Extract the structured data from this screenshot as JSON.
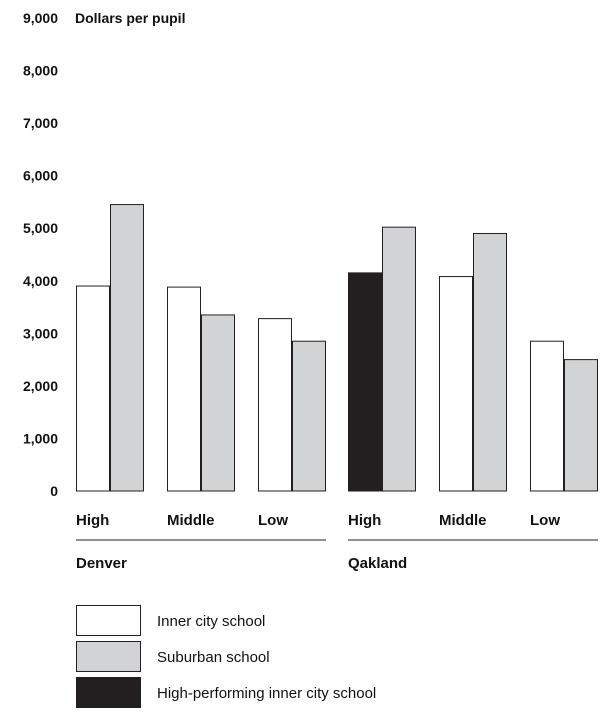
{
  "chart_data": {
    "type": "bar",
    "ylabel": "Dollars per pupil",
    "ylim": [
      0,
      9000
    ],
    "yticks": [
      "0",
      "1,000",
      "2,000",
      "3,000",
      "4,000",
      "5,000",
      "6,000",
      "7,000",
      "8,000",
      "9,000"
    ],
    "grid": false,
    "groups": [
      {
        "name": "Denver",
        "categories": [
          {
            "label": "High",
            "bars": [
              {
                "series": "inner",
                "value": 3900
              },
              {
                "series": "suburban",
                "value": 5450
              }
            ]
          },
          {
            "label": "Middle",
            "bars": [
              {
                "series": "inner",
                "value": 3880
              },
              {
                "series": "suburban",
                "value": 3350
              }
            ]
          },
          {
            "label": "Low",
            "bars": [
              {
                "series": "inner",
                "value": 3280
              },
              {
                "series": "suburban",
                "value": 2850
              }
            ]
          }
        ]
      },
      {
        "name": "Qakland",
        "categories": [
          {
            "label": "High",
            "bars": [
              {
                "series": "high_performing",
                "value": 4150
              },
              {
                "series": "suburban",
                "value": 5020
              }
            ]
          },
          {
            "label": "Middle",
            "bars": [
              {
                "series": "inner",
                "value": 4080
              },
              {
                "series": "suburban",
                "value": 4900
              }
            ]
          },
          {
            "label": "Low",
            "bars": [
              {
                "series": "inner",
                "value": 2850
              },
              {
                "series": "suburban",
                "value": 2500
              }
            ]
          }
        ]
      }
    ],
    "legend_position": "bottom-left",
    "legend": [
      {
        "key": "inner",
        "label": "Inner city school",
        "color": "#ffffff"
      },
      {
        "key": "suburban",
        "label": "Suburban school",
        "color": "#d2d3d5"
      },
      {
        "key": "high_performing",
        "label": "High-performing inner city school",
        "color": "#231f20"
      }
    ]
  }
}
